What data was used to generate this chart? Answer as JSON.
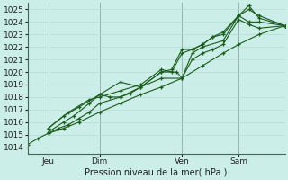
{
  "xlabel": "Pression niveau de la mer( hPa )",
  "bg_color": "#cceee8",
  "grid_color": "#b8d8d4",
  "line_color": "#1a5c1a",
  "vline_color": "#446655",
  "ylim": [
    1013.5,
    1025.5
  ],
  "xlim": [
    0,
    100
  ],
  "x_ticks": [
    8,
    28,
    60,
    82
  ],
  "x_labels": [
    "Jeu",
    "Dim",
    "Ven",
    "Sam"
  ],
  "x_vlines": [
    8,
    28,
    60,
    82
  ],
  "series": [
    {
      "x": [
        0,
        4,
        8,
        14,
        20,
        28,
        36,
        44,
        52,
        60,
        68,
        76,
        82,
        90,
        100
      ],
      "y": [
        1014.2,
        1014.7,
        1015.1,
        1015.5,
        1016.0,
        1016.8,
        1017.5,
        1018.2,
        1018.8,
        1019.5,
        1020.5,
        1021.5,
        1022.2,
        1023.0,
        1023.7
      ]
    },
    {
      "x": [
        8,
        12,
        16,
        20,
        24,
        28,
        36,
        40,
        44,
        52,
        60,
        64,
        68,
        72,
        76,
        82,
        86,
        90,
        100
      ],
      "y": [
        1015.1,
        1015.5,
        1015.8,
        1016.3,
        1016.8,
        1017.5,
        1018.0,
        1018.3,
        1018.8,
        1019.5,
        1019.5,
        1021.0,
        1021.5,
        1021.8,
        1022.2,
        1024.2,
        1023.8,
        1023.5,
        1023.7
      ]
    },
    {
      "x": [
        8,
        14,
        18,
        24,
        28,
        32,
        36,
        44,
        52,
        58,
        60,
        64,
        68,
        76,
        82,
        86,
        90,
        100
      ],
      "y": [
        1015.2,
        1016.0,
        1016.5,
        1017.5,
        1018.2,
        1018.0,
        1018.0,
        1018.8,
        1020.0,
        1020.0,
        1019.5,
        1021.5,
        1022.0,
        1022.5,
        1024.5,
        1024.0,
        1024.0,
        1023.7
      ]
    },
    {
      "x": [
        8,
        14,
        20,
        28,
        36,
        44,
        52,
        56,
        60,
        64,
        68,
        72,
        76,
        82,
        86,
        90,
        100
      ],
      "y": [
        1015.5,
        1016.5,
        1017.2,
        1018.2,
        1019.2,
        1018.8,
        1020.0,
        1020.2,
        1021.8,
        1021.8,
        1022.2,
        1022.8,
        1023.2,
        1024.5,
        1025.3,
        1024.3,
        1023.7
      ]
    },
    {
      "x": [
        8,
        16,
        24,
        28,
        36,
        44,
        52,
        56,
        60,
        64,
        68,
        72,
        76,
        82,
        86,
        90,
        100
      ],
      "y": [
        1015.5,
        1016.8,
        1017.8,
        1018.0,
        1018.5,
        1019.0,
        1020.2,
        1020.0,
        1021.5,
        1021.8,
        1022.2,
        1022.8,
        1023.0,
        1024.5,
        1025.0,
        1024.5,
        1023.7
      ]
    }
  ]
}
